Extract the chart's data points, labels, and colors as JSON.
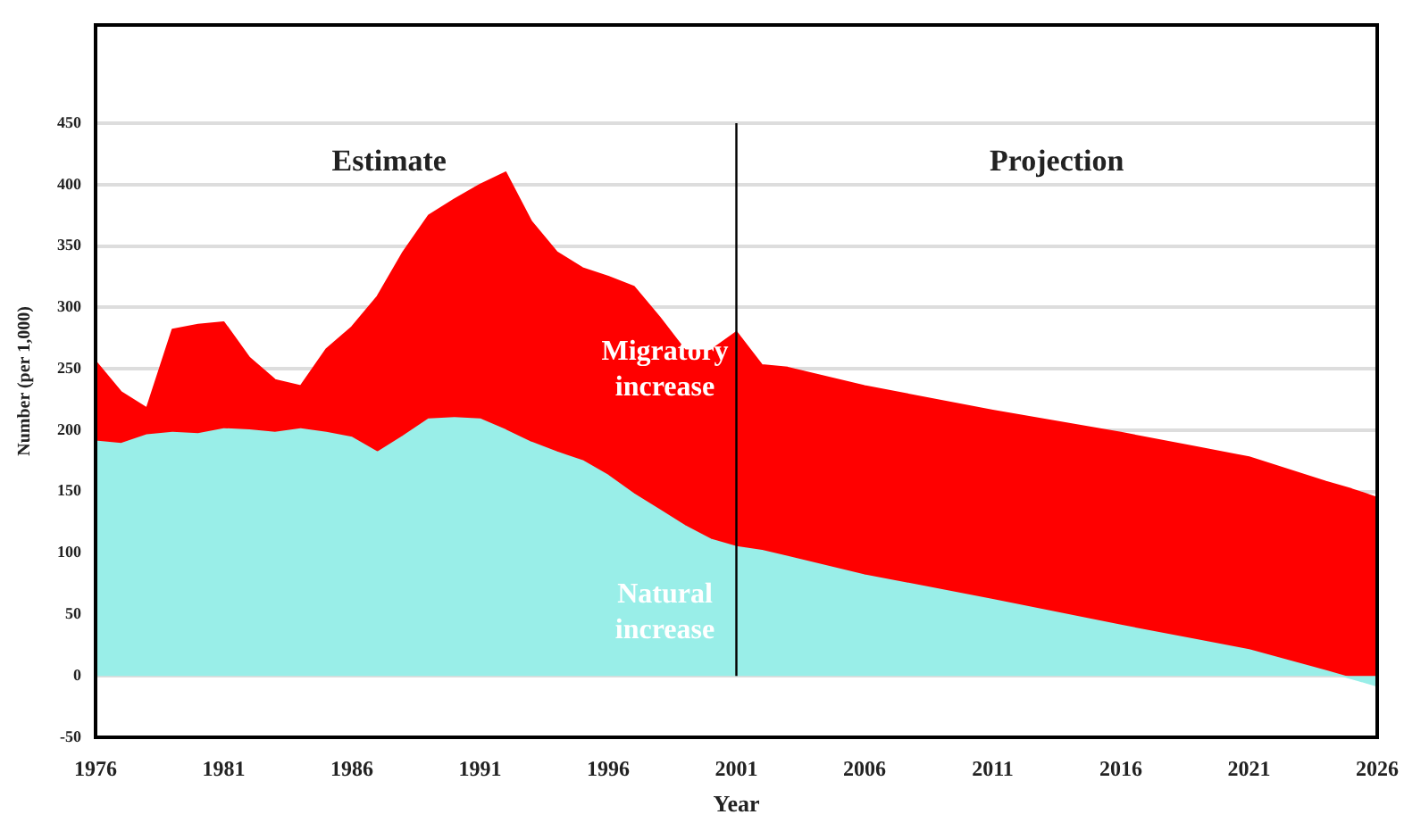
{
  "chart_data": {
    "type": "area",
    "xlabel": "Year",
    "ylabel": "Number (per 1,000)",
    "x": [
      1976,
      1977,
      1978,
      1979,
      1980,
      1981,
      1982,
      1983,
      1984,
      1985,
      1986,
      1987,
      1988,
      1989,
      1990,
      1991,
      1992,
      1993,
      1994,
      1995,
      1996,
      1997,
      1998,
      1999,
      2000,
      2001,
      2002,
      2003,
      2006,
      2011,
      2016,
      2019,
      2021,
      2024,
      2025,
      2026
    ],
    "series": [
      {
        "name": "Natural increase",
        "color": "#99eee8",
        "values": [
          191,
          189,
          196,
          198,
          197,
          201,
          200,
          198,
          201,
          198,
          194,
          182,
          195,
          209,
          210,
          209,
          200,
          190,
          182,
          175,
          163,
          148,
          135,
          122,
          111,
          105,
          102,
          97,
          82,
          62,
          41,
          29,
          21,
          4,
          -2,
          -8
        ]
      },
      {
        "name": "Migratory increase",
        "color": "#ff0000",
        "values": [
          65,
          42,
          22,
          84,
          89,
          87,
          59,
          43,
          35,
          68,
          90,
          127,
          150,
          166,
          178,
          191,
          210,
          180,
          163,
          157,
          162,
          169,
          157,
          143,
          154,
          175,
          151,
          154,
          154,
          154,
          157,
          157,
          157,
          154,
          154,
          153
        ]
      }
    ],
    "stacked": true,
    "xlim": [
      1976,
      2026
    ],
    "xticks": [
      1976,
      1981,
      1986,
      1991,
      1996,
      2001,
      2006,
      2011,
      2016,
      2021,
      2026
    ],
    "ylim": [
      -50,
      530
    ],
    "yticks": [
      -50,
      0,
      50,
      100,
      150,
      200,
      250,
      300,
      350,
      400,
      450
    ],
    "grid": "y",
    "legend": false,
    "ref_lines": [
      {
        "axis": "x",
        "value": 2001,
        "color": "#000000"
      }
    ],
    "annotations": [
      "Estimate",
      "Projection"
    ]
  }
}
